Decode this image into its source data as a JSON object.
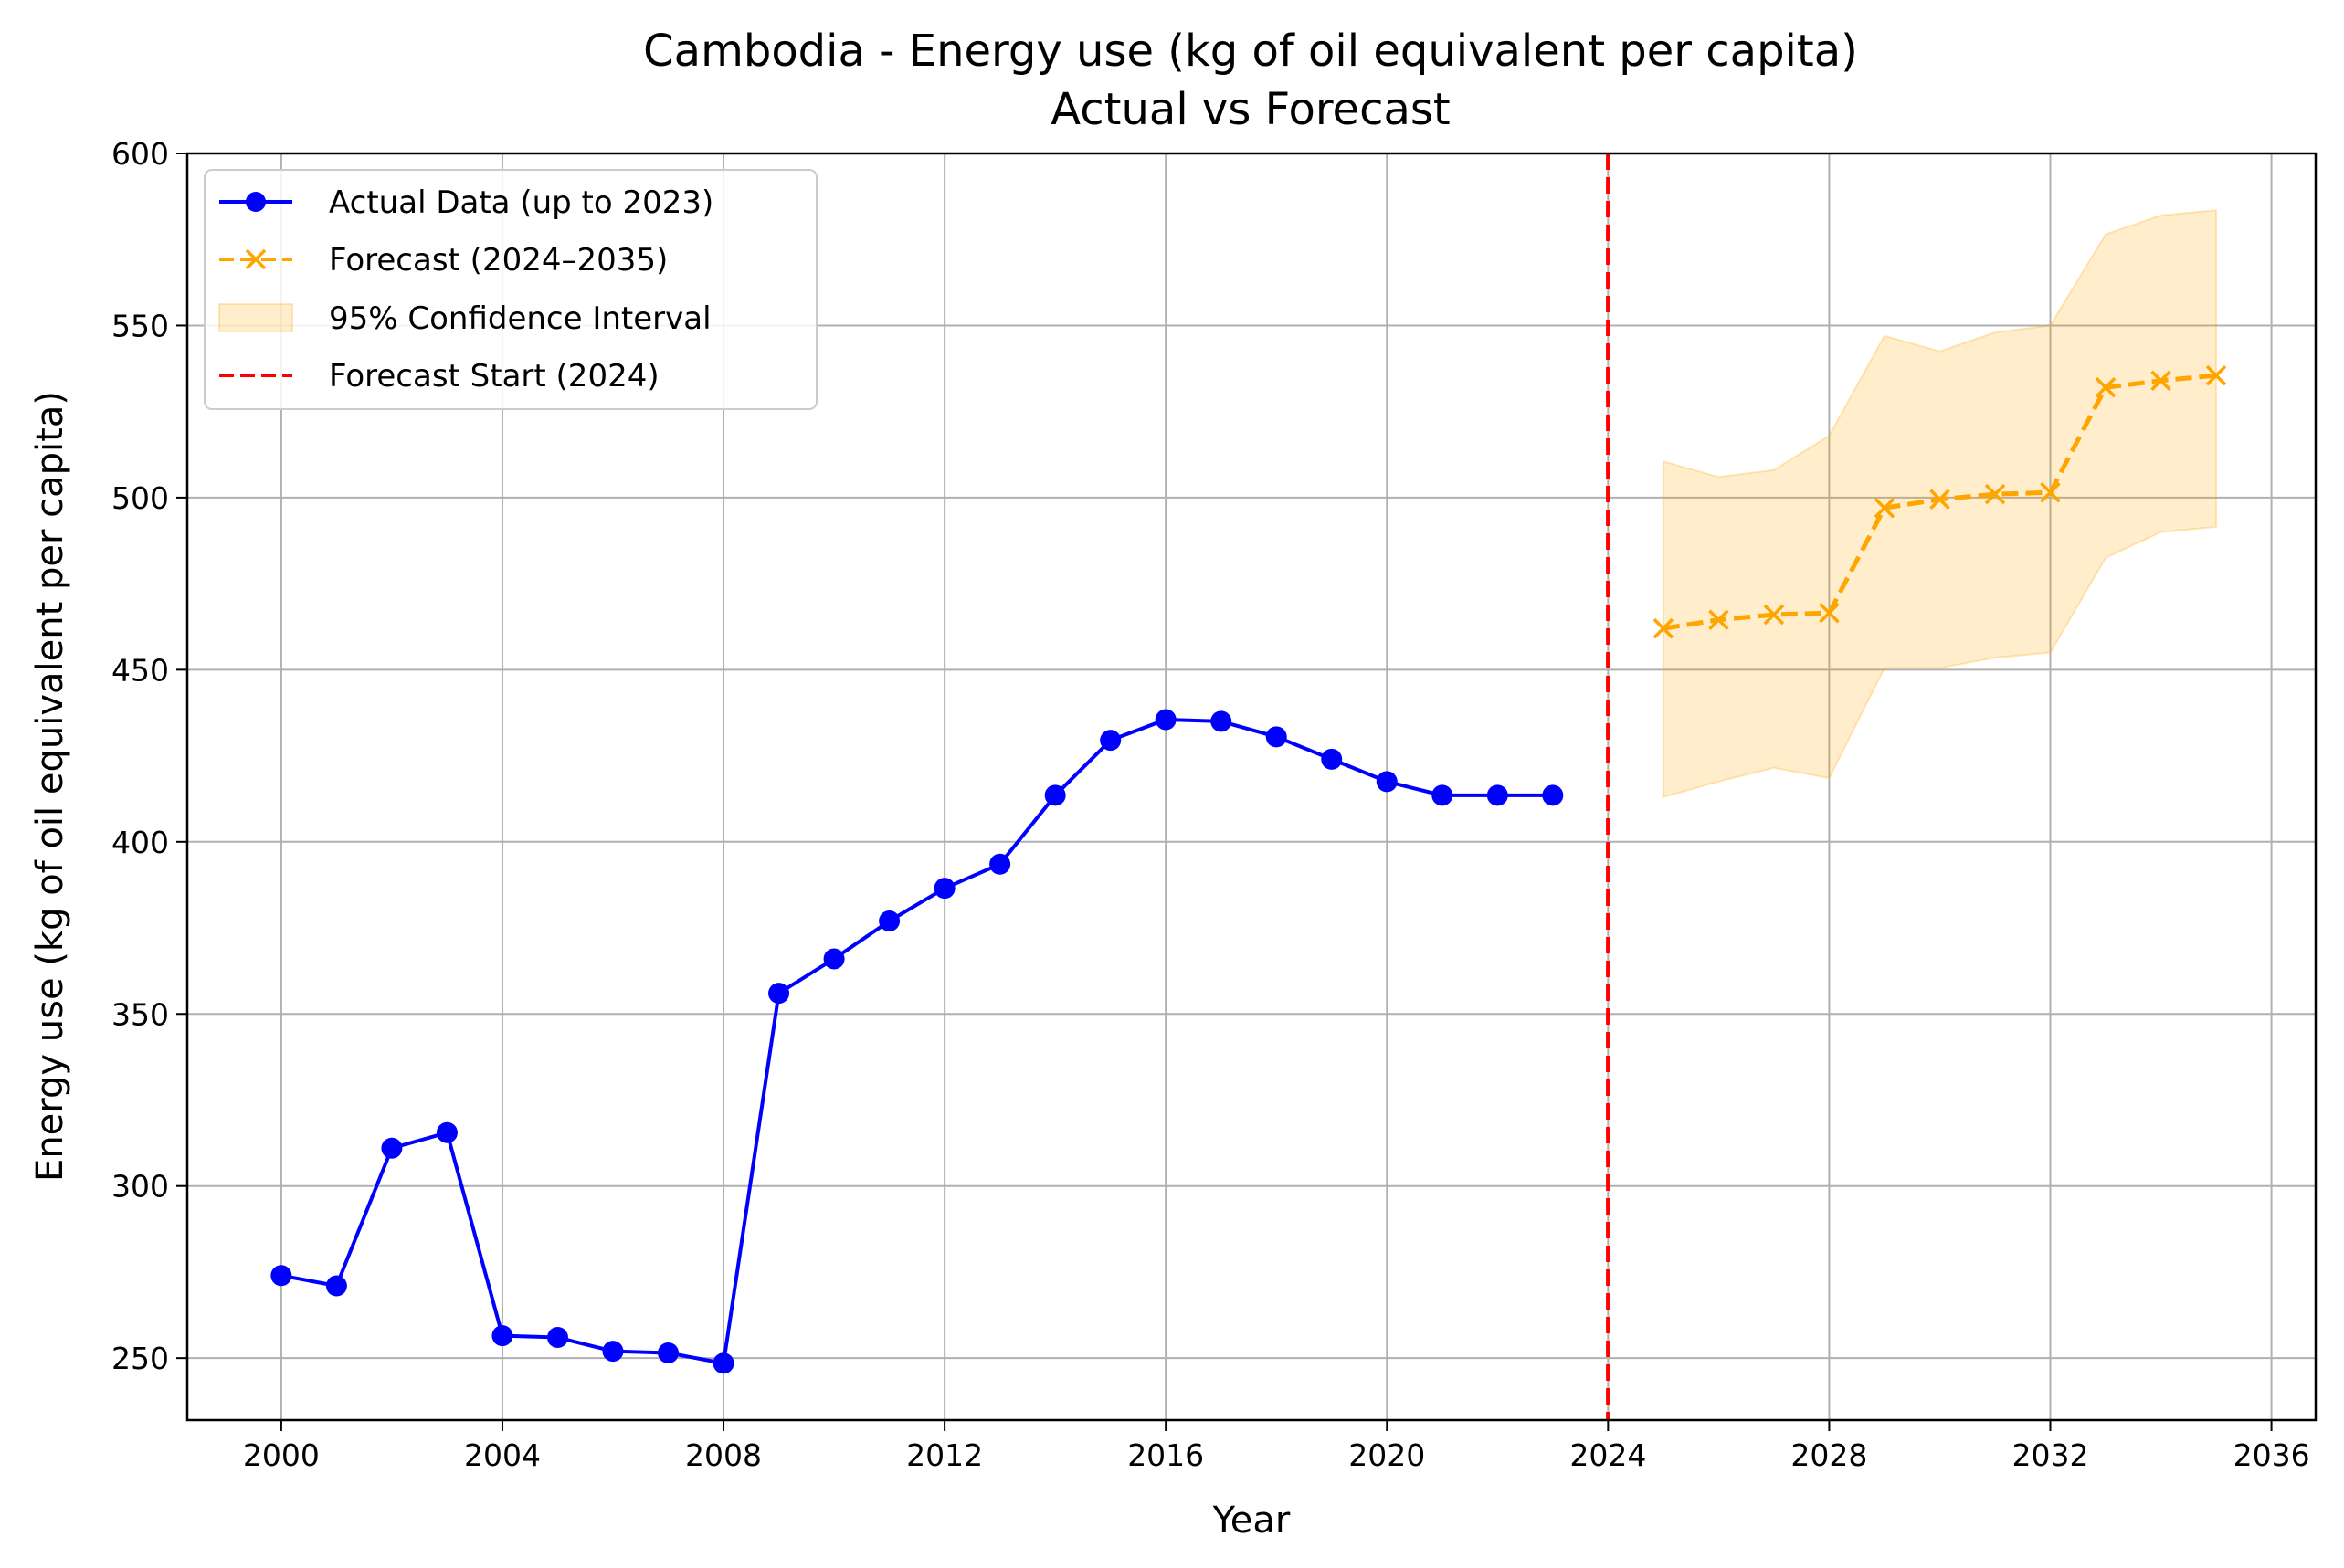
{
  "chart_data": {
    "type": "line",
    "title": "Cambodia - Energy use (kg of oil equivalent per capita)",
    "subtitle": "Actual vs Forecast",
    "xlabel": "Year",
    "ylabel": "Energy use (kg of oil equivalent per capita)",
    "xlim": [
      1998.3,
      2036.8
    ],
    "ylim": [
      232,
      600
    ],
    "x_ticks": [
      2000,
      2004,
      2008,
      2012,
      2016,
      2020,
      2024,
      2028,
      2032,
      2036
    ],
    "y_ticks": [
      250,
      300,
      350,
      400,
      450,
      500,
      550,
      600
    ],
    "grid": true,
    "legend_position": "top-left",
    "colors": {
      "actual": "#0000ff",
      "forecast": "#ffa500",
      "confidence": "#ffa500",
      "forecast_start": "#ff0000",
      "grid": "#b0b0b0"
    },
    "series": [
      {
        "name": "Actual Data (up to 2023)",
        "style": "solid-line-circle-markers",
        "x": [
          2000,
          2001,
          2002,
          2003,
          2004,
          2005,
          2006,
          2007,
          2008,
          2009,
          2010,
          2011,
          2012,
          2013,
          2014,
          2015,
          2016,
          2017,
          2018,
          2019,
          2020,
          2021,
          2022,
          2023
        ],
        "values": [
          274,
          271,
          311,
          315.5,
          256.5,
          256,
          252,
          251.5,
          248.5,
          356,
          366,
          377,
          386.5,
          393.5,
          413.5,
          429.5,
          435.5,
          435,
          430.5,
          424,
          417.5,
          413.5,
          413.5,
          413.5
        ]
      },
      {
        "name": "Forecast (2024–2035)",
        "style": "dashed-line-x-markers",
        "x": [
          2025,
          2026,
          2027,
          2028,
          2029,
          2030,
          2031,
          2032,
          2033,
          2034,
          2035
        ],
        "values": [
          462,
          464.5,
          466,
          466.5,
          497,
          499.5,
          501,
          501.5,
          532,
          534,
          535.5
        ]
      },
      {
        "name": "95% Confidence Interval",
        "style": "shaded-band",
        "x": [
          2025,
          2026,
          2027,
          2028,
          2029,
          2030,
          2031,
          2032,
          2033,
          2034,
          2035
        ],
        "lower": [
          413,
          417.5,
          421.5,
          418.5,
          450.5,
          450.5,
          453.5,
          455,
          482.5,
          490,
          491.5
        ],
        "upper": [
          510.5,
          506,
          508,
          518,
          547,
          542.5,
          548,
          550,
          576.5,
          582,
          583.5
        ]
      },
      {
        "name": "Forecast Start (2024)",
        "style": "vertical-dashed-line",
        "x": [
          2024
        ]
      }
    ]
  }
}
